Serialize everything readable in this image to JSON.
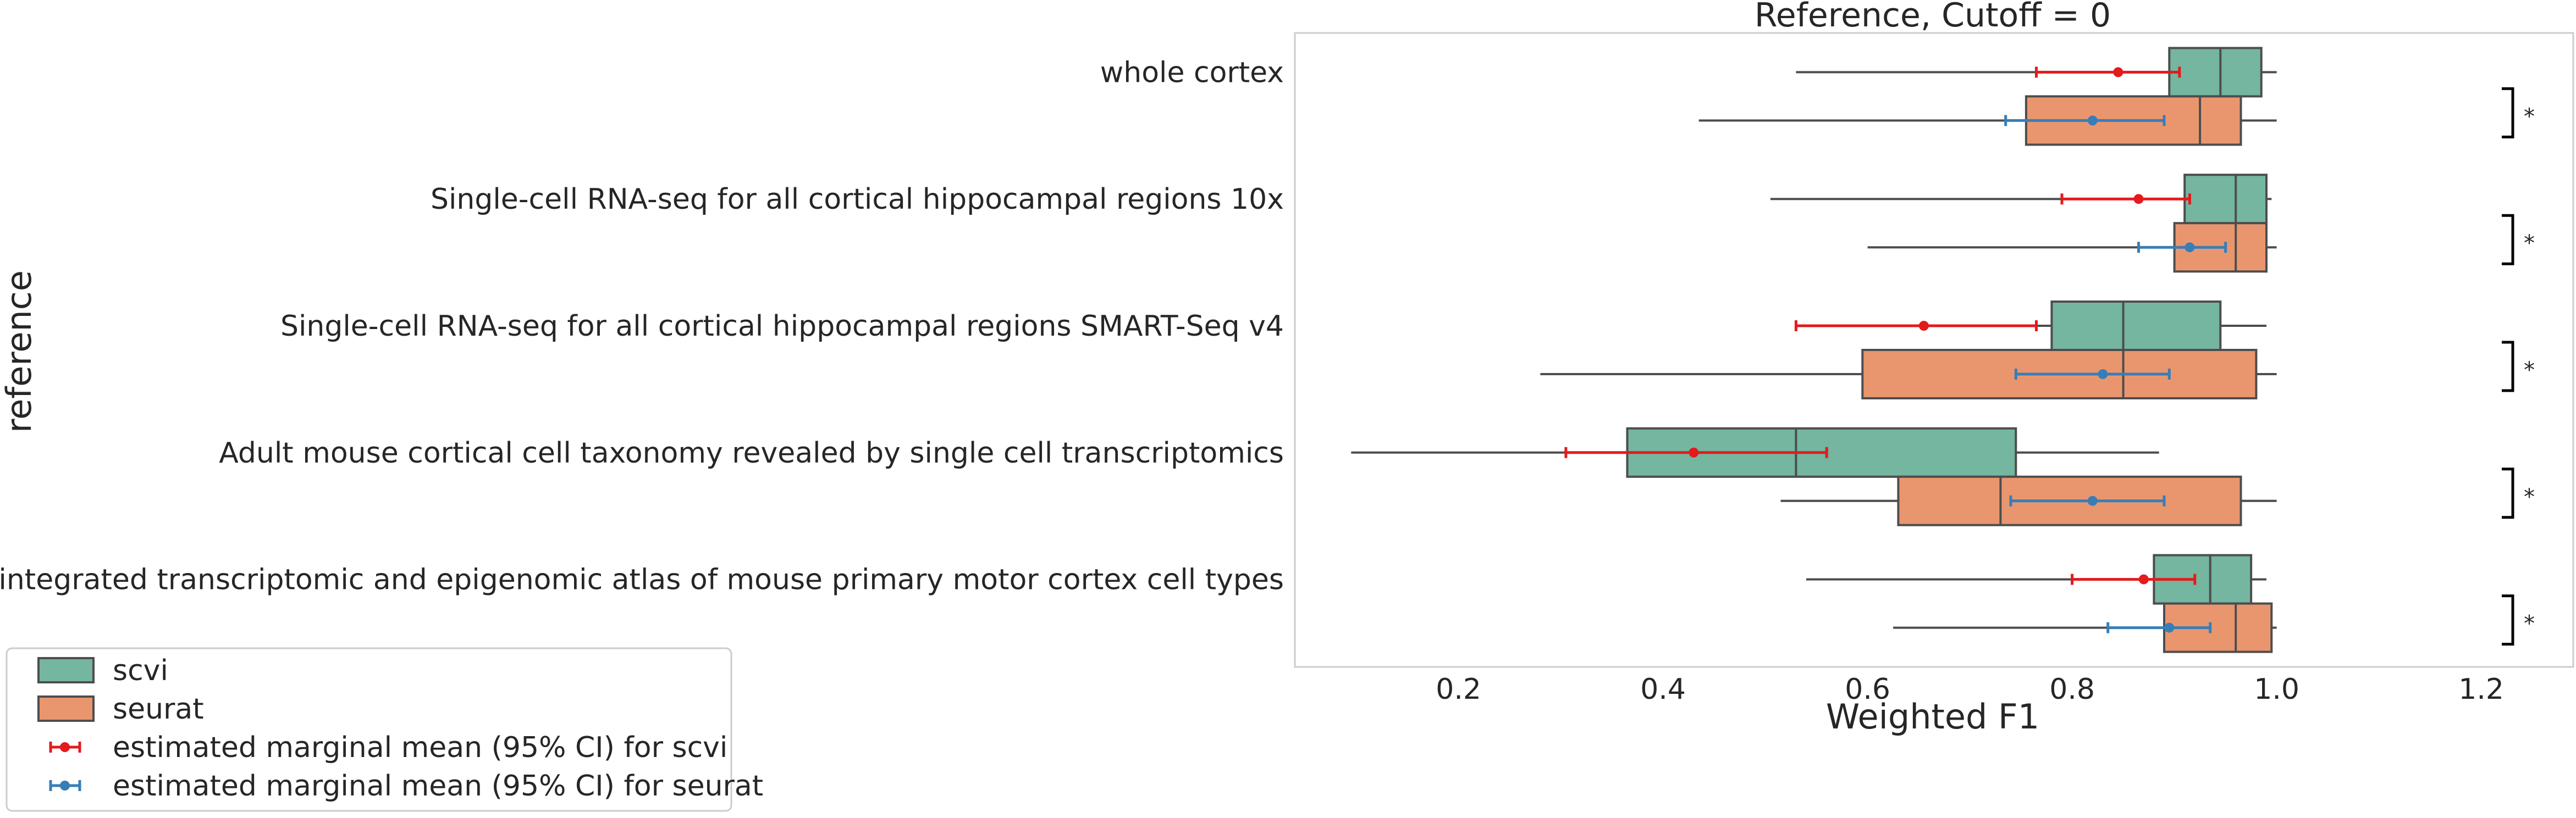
{
  "chart_data": {
    "type": "box",
    "orientation": "horizontal",
    "title": "Reference, Cutoff = 0",
    "xlabel": "Weighted F1",
    "ylabel": "reference",
    "xlim": [
      0.04,
      1.29
    ],
    "xticks": [
      0.2,
      0.4,
      0.6,
      0.8,
      1.0,
      1.2
    ],
    "xtick_labels": [
      "0.2",
      "0.4",
      "0.6",
      "0.8",
      "1.0",
      "1.2"
    ],
    "grid": false,
    "legend_position": "bottom-left",
    "categories": [
      "whole cortex",
      "Single-cell RNA-seq for all cortical  hippocampal regions 10x",
      "Single-cell RNA-seq for all cortical  hippocampal regions SMART-Seq v4",
      "Adult mouse cortical cell taxonomy revealed by single cell transcriptomics",
      "An integrated transcriptomic and epigenomic atlas of mouse primary motor cortex cell types"
    ],
    "series": [
      {
        "name": "scvi",
        "color": "#74b69f",
        "boxes": [
          {
            "whisker_low": 0.53,
            "q1": 0.895,
            "median": 0.945,
            "q3": 0.985,
            "whisker_high": 1.0
          },
          {
            "whisker_low": 0.505,
            "q1": 0.91,
            "median": 0.96,
            "q3": 0.99,
            "whisker_high": 0.995
          },
          {
            "whisker_low": 0.53,
            "q1": 0.78,
            "median": 0.85,
            "q3": 0.945,
            "whisker_high": 0.99
          },
          {
            "whisker_low": 0.095,
            "q1": 0.365,
            "median": 0.53,
            "q3": 0.745,
            "whisker_high": 0.885
          },
          {
            "whisker_low": 0.54,
            "q1": 0.88,
            "median": 0.935,
            "q3": 0.975,
            "whisker_high": 0.99
          }
        ]
      },
      {
        "name": "seurat",
        "color": "#e9966f",
        "boxes": [
          {
            "whisker_low": 0.435,
            "q1": 0.755,
            "median": 0.925,
            "q3": 0.965,
            "whisker_high": 1.0
          },
          {
            "whisker_low": 0.6,
            "q1": 0.9,
            "median": 0.96,
            "q3": 0.99,
            "whisker_high": 1.0
          },
          {
            "whisker_low": 0.28,
            "q1": 0.595,
            "median": 0.85,
            "q3": 0.98,
            "whisker_high": 1.0
          },
          {
            "whisker_low": 0.515,
            "q1": 0.63,
            "median": 0.73,
            "q3": 0.965,
            "whisker_high": 1.0
          },
          {
            "whisker_low": 0.625,
            "q1": 0.89,
            "median": 0.96,
            "q3": 0.995,
            "whisker_high": 1.0
          }
        ]
      }
    ],
    "marginal_means": [
      {
        "name": "estimated marginal mean (95% CI) for scvi",
        "color": "#e41a1c",
        "points": [
          {
            "mean": 0.845,
            "ci_low": 0.765,
            "ci_high": 0.905
          },
          {
            "mean": 0.865,
            "ci_low": 0.79,
            "ci_high": 0.915
          },
          {
            "mean": 0.655,
            "ci_low": 0.53,
            "ci_high": 0.765
          },
          {
            "mean": 0.43,
            "ci_low": 0.305,
            "ci_high": 0.56
          },
          {
            "mean": 0.87,
            "ci_low": 0.8,
            "ci_high": 0.92
          }
        ]
      },
      {
        "name": "estimated marginal mean (95% CI) for seurat",
        "color": "#377eb8",
        "points": [
          {
            "mean": 0.82,
            "ci_low": 0.735,
            "ci_high": 0.89
          },
          {
            "mean": 0.915,
            "ci_low": 0.865,
            "ci_high": 0.95
          },
          {
            "mean": 0.83,
            "ci_low": 0.745,
            "ci_high": 0.895
          },
          {
            "mean": 0.82,
            "ci_low": 0.74,
            "ci_high": 0.89
          },
          {
            "mean": 0.895,
            "ci_low": 0.835,
            "ci_high": 0.935
          }
        ]
      }
    ],
    "significance": {
      "marker": "*",
      "color": "#e41a1c",
      "bracket_color": "#000000",
      "labels": [
        "*",
        "*",
        "*",
        "*",
        "*"
      ]
    },
    "legend": [
      {
        "label": "scvi",
        "kind": "box",
        "color": "#74b69f"
      },
      {
        "label": "seurat",
        "kind": "box",
        "color": "#e9966f"
      },
      {
        "label": "estimated marginal mean (95% CI) for scvi",
        "kind": "errorbar",
        "color": "#e41a1c"
      },
      {
        "label": "estimated marginal mean (95% CI) for seurat",
        "kind": "errorbar",
        "color": "#377eb8"
      }
    ]
  }
}
